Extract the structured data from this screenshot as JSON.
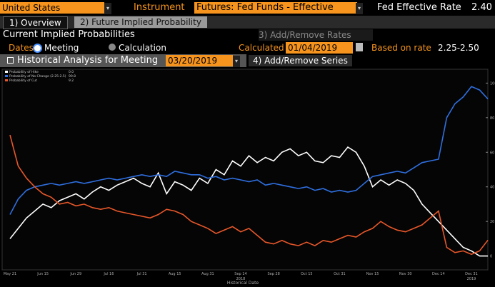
{
  "header": {
    "country": "United States",
    "instrument_label": "Instrument",
    "instrument": "Futures: Fed Funds - Effective",
    "rate_label": "Fed Effective Rate",
    "rate": "2.40"
  },
  "tabs": [
    "1) Overview",
    "2) Future Implied Probability"
  ],
  "section": {
    "title": "Current Implied Probabilities",
    "add_rates": "3) Add/Remove Rates"
  },
  "dates_row": {
    "label": "Dates",
    "option_meeting": "Meeting",
    "option_calculation": "Calculation",
    "calculated_label": "Calculated",
    "calculated": "01/04/2019",
    "based_label": "Based on rate",
    "based": "2.25-2.50"
  },
  "analysis_row": {
    "title": "Historical Analysis for Meeting",
    "meeting": "03/20/2019",
    "add_series": "4) Add/Remove Series"
  },
  "chart_data": {
    "type": "line",
    "x_label": "Historical Date",
    "x_years": [
      "2018",
      "2019"
    ],
    "categories": [
      "May 21",
      null,
      null,
      null,
      "Jun 15",
      null,
      null,
      null,
      "Jun 29",
      null,
      null,
      null,
      "Jul 16",
      null,
      null,
      null,
      "Jul 31",
      null,
      null,
      null,
      "Aug 15",
      null,
      null,
      null,
      "Aug 31",
      null,
      null,
      null,
      "Sep 14",
      null,
      null,
      null,
      "Sep 28",
      null,
      null,
      null,
      "Oct 15",
      null,
      null,
      null,
      "Oct 31",
      null,
      null,
      null,
      "Nov 15",
      null,
      null,
      null,
      "Nov 30",
      null,
      null,
      null,
      "Dec 14",
      null,
      null,
      null,
      "Dec 31",
      null,
      null
    ],
    "series": [
      {
        "name": "Probability of Hike",
        "legend_value": "0.0",
        "color": "#ffffff",
        "values": [
          10,
          16,
          22,
          26,
          30,
          28,
          32,
          34,
          36,
          33,
          37,
          40,
          38,
          41,
          43,
          45,
          42,
          40,
          48,
          36,
          43,
          41,
          38,
          45,
          42,
          50,
          47,
          55,
          52,
          58,
          54,
          57,
          55,
          60,
          62,
          58,
          60,
          55,
          54,
          58,
          57,
          63,
          60,
          52,
          40,
          44,
          41,
          44,
          42,
          38,
          30,
          25,
          20,
          15,
          10,
          5,
          3,
          0,
          0
        ]
      },
      {
        "name": "Probability of No Change (2.25-2.5)",
        "legend_value": "90.8",
        "color": "#2f6fe0",
        "values": [
          24,
          33,
          38,
          40,
          41,
          42,
          41,
          42,
          43,
          42,
          43,
          44,
          45,
          44,
          45,
          46,
          47,
          46,
          47,
          46,
          49,
          48,
          47,
          47,
          45,
          46,
          44,
          45,
          44,
          43,
          44,
          41,
          42,
          41,
          40,
          39,
          40,
          38,
          39,
          37,
          38,
          37,
          38,
          42,
          46,
          47,
          48,
          49,
          48,
          51,
          54,
          55,
          56,
          80,
          88,
          92,
          98,
          96,
          90.8
        ]
      },
      {
        "name": "Probability of Cut",
        "legend_value": "9.2",
        "color": "#e8572a",
        "values": [
          70,
          52,
          45,
          40,
          36,
          34,
          30,
          31,
          29,
          30,
          28,
          27,
          28,
          26,
          25,
          24,
          23,
          22,
          24,
          27,
          26,
          24,
          20,
          18,
          16,
          13,
          15,
          17,
          14,
          16,
          12,
          8,
          7,
          9,
          7,
          6,
          8,
          6,
          9,
          8,
          10,
          12,
          11,
          14,
          16,
          20,
          17,
          15,
          14,
          16,
          18,
          22,
          26,
          5,
          2,
          3,
          1,
          3,
          9.2
        ]
      }
    ],
    "ylim": [
      -8,
      108
    ],
    "yticks": [
      0,
      20,
      40,
      60,
      80,
      100
    ]
  }
}
